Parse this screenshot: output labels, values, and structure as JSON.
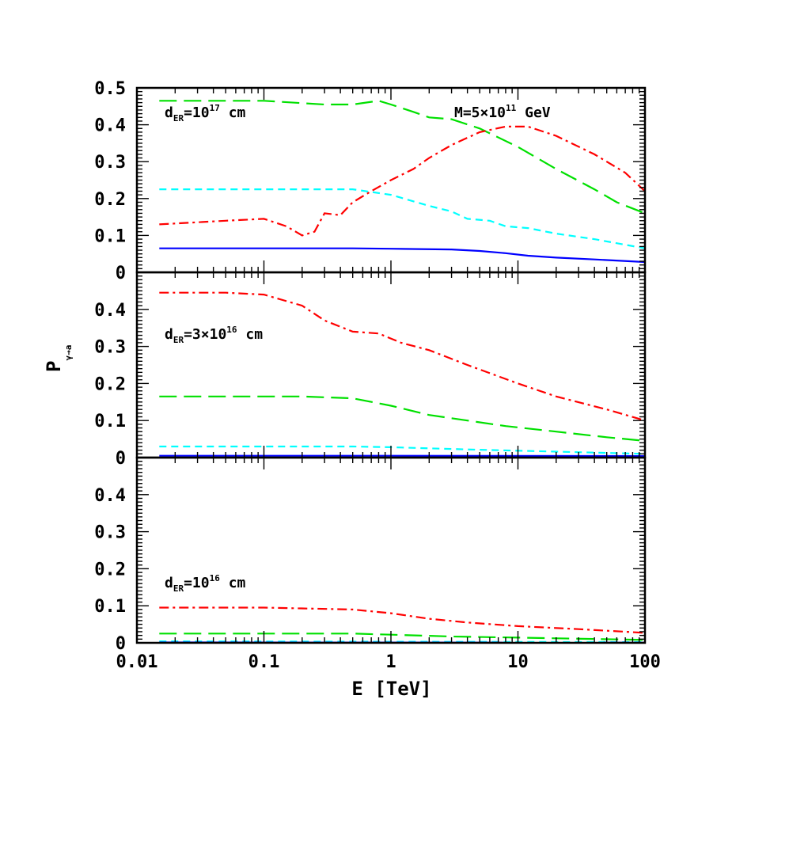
{
  "chart_data": {
    "type": "line",
    "x_scale": "log",
    "xlim": [
      0.01,
      100
    ],
    "x_ticks": [
      "0.01",
      "0.1",
      "1",
      "10",
      "100"
    ],
    "xlabel": "E [TeV]",
    "ylabel": "P",
    "ylabel_sub": "γ→a",
    "annotation": {
      "text": "M=5×10",
      "sup": "11",
      "unit": " GeV"
    },
    "panels": [
      {
        "annotation": {
          "d": "d",
          "sub": "ER",
          "text": "=10",
          "sup": "17",
          "unit": " cm"
        },
        "ylim": [
          0,
          0.5
        ],
        "y_ticks": [
          "0.5",
          "0.4",
          "0.3",
          "0.2",
          "0.1",
          "0"
        ],
        "series": [
          {
            "color": "#00e000",
            "dash": "long",
            "points": [
              [
                0.015,
                0.465
              ],
              [
                0.1,
                0.465
              ],
              [
                0.3,
                0.455
              ],
              [
                0.5,
                0.455
              ],
              [
                0.8,
                0.465
              ],
              [
                1,
                0.455
              ],
              [
                1.5,
                0.435
              ],
              [
                2,
                0.42
              ],
              [
                3,
                0.415
              ],
              [
                5,
                0.39
              ],
              [
                10,
                0.34
              ],
              [
                20,
                0.28
              ],
              [
                40,
                0.225
              ],
              [
                60,
                0.19
              ],
              [
                100,
                0.16
              ]
            ]
          },
          {
            "color": "#ff0000",
            "dash": "dashdot",
            "points": [
              [
                0.015,
                0.13
              ],
              [
                0.05,
                0.14
              ],
              [
                0.1,
                0.145
              ],
              [
                0.15,
                0.125
              ],
              [
                0.2,
                0.1
              ],
              [
                0.25,
                0.11
              ],
              [
                0.3,
                0.16
              ],
              [
                0.4,
                0.155
              ],
              [
                0.5,
                0.19
              ],
              [
                0.7,
                0.22
              ],
              [
                1,
                0.25
              ],
              [
                1.5,
                0.28
              ],
              [
                2,
                0.31
              ],
              [
                3,
                0.345
              ],
              [
                5,
                0.38
              ],
              [
                8,
                0.395
              ],
              [
                12,
                0.395
              ],
              [
                20,
                0.37
              ],
              [
                40,
                0.32
              ],
              [
                70,
                0.27
              ],
              [
                100,
                0.22
              ]
            ]
          },
          {
            "color": "#00ffff",
            "dash": "short",
            "points": [
              [
                0.015,
                0.225
              ],
              [
                0.1,
                0.225
              ],
              [
                0.5,
                0.225
              ],
              [
                1,
                0.21
              ],
              [
                2,
                0.18
              ],
              [
                3,
                0.165
              ],
              [
                4,
                0.145
              ],
              [
                6,
                0.14
              ],
              [
                8,
                0.125
              ],
              [
                12,
                0.12
              ],
              [
                20,
                0.105
              ],
              [
                40,
                0.09
              ],
              [
                100,
                0.065
              ]
            ]
          },
          {
            "color": "#0000ff",
            "dash": "solid",
            "points": [
              [
                0.015,
                0.065
              ],
              [
                0.5,
                0.065
              ],
              [
                1,
                0.064
              ],
              [
                3,
                0.062
              ],
              [
                5,
                0.058
              ],
              [
                8,
                0.052
              ],
              [
                12,
                0.045
              ],
              [
                20,
                0.04
              ],
              [
                40,
                0.035
              ],
              [
                100,
                0.028
              ]
            ]
          }
        ]
      },
      {
        "annotation": {
          "d": "d",
          "sub": "ER",
          "text": "=3×10",
          "sup": "16",
          "unit": " cm"
        },
        "ylim": [
          0,
          0.5
        ],
        "y_ticks": [
          "0.4",
          "0.3",
          "0.2",
          "0.1",
          "0"
        ],
        "series": [
          {
            "color": "#ff0000",
            "dash": "dashdot",
            "points": [
              [
                0.015,
                0.445
              ],
              [
                0.05,
                0.445
              ],
              [
                0.1,
                0.44
              ],
              [
                0.2,
                0.41
              ],
              [
                0.3,
                0.37
              ],
              [
                0.5,
                0.34
              ],
              [
                0.8,
                0.335
              ],
              [
                1.2,
                0.31
              ],
              [
                2,
                0.29
              ],
              [
                4,
                0.25
              ],
              [
                10,
                0.2
              ],
              [
                20,
                0.165
              ],
              [
                50,
                0.13
              ],
              [
                100,
                0.1
              ]
            ]
          },
          {
            "color": "#00e000",
            "dash": "long",
            "points": [
              [
                0.015,
                0.165
              ],
              [
                0.2,
                0.165
              ],
              [
                0.5,
                0.16
              ],
              [
                1,
                0.14
              ],
              [
                2,
                0.115
              ],
              [
                4,
                0.1
              ],
              [
                8,
                0.085
              ],
              [
                20,
                0.07
              ],
              [
                50,
                0.055
              ],
              [
                100,
                0.045
              ]
            ]
          },
          {
            "color": "#00ffff",
            "dash": "short",
            "points": [
              [
                0.015,
                0.03
              ],
              [
                0.5,
                0.03
              ],
              [
                1,
                0.028
              ],
              [
                4,
                0.022
              ],
              [
                20,
                0.016
              ],
              [
                100,
                0.01
              ]
            ]
          },
          {
            "color": "#0000ff",
            "dash": "solid",
            "points": [
              [
                0.015,
                0.005
              ],
              [
                1,
                0.005
              ],
              [
                100,
                0.004
              ]
            ]
          }
        ]
      },
      {
        "annotation": {
          "d": "d",
          "sub": "ER",
          "text": "=10",
          "sup": "16",
          "unit": " cm"
        },
        "ylim": [
          0,
          0.5
        ],
        "y_ticks": [
          "0.4",
          "0.3",
          "0.2",
          "0.1",
          "0"
        ],
        "series": [
          {
            "color": "#ff0000",
            "dash": "dashdot",
            "points": [
              [
                0.015,
                0.095
              ],
              [
                0.1,
                0.095
              ],
              [
                0.5,
                0.09
              ],
              [
                1,
                0.08
              ],
              [
                2,
                0.065
              ],
              [
                4,
                0.055
              ],
              [
                10,
                0.045
              ],
              [
                30,
                0.037
              ],
              [
                100,
                0.027
              ]
            ]
          },
          {
            "color": "#00e000",
            "dash": "long",
            "points": [
              [
                0.015,
                0.025
              ],
              [
                0.5,
                0.025
              ],
              [
                1,
                0.022
              ],
              [
                3,
                0.017
              ],
              [
                10,
                0.014
              ],
              [
                100,
                0.008
              ]
            ]
          },
          {
            "color": "#00ffff",
            "dash": "short",
            "points": [
              [
                0.015,
                0.004
              ],
              [
                100,
                0.002
              ]
            ]
          },
          {
            "color": "#0000ff",
            "dash": "solid",
            "points": [
              [
                0.015,
                0.001
              ],
              [
                100,
                0.0005
              ]
            ]
          }
        ]
      }
    ]
  }
}
